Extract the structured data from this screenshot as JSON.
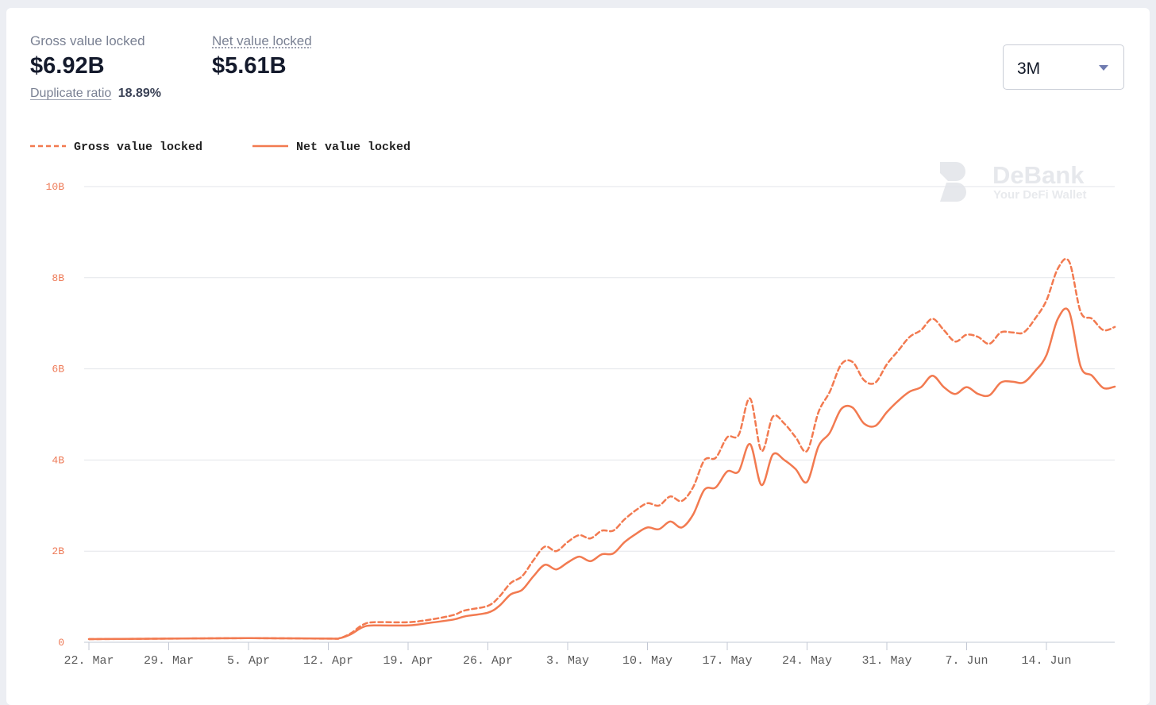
{
  "summary": {
    "gross_label": "Gross value locked",
    "gross_value": "$6.92B",
    "net_label": "Net value locked",
    "net_value": "$5.61B",
    "duplicate_label": "Duplicate ratio",
    "duplicate_value": "18.89%"
  },
  "range_selector": {
    "value": "3M"
  },
  "watermark": {
    "brand": "DeBank",
    "tagline": "Your DeFi Wallet"
  },
  "colors": {
    "series": "#f27a50",
    "axis_label": "#ee7a57",
    "grid": "#e3e5ea",
    "x_label": "#5c5c5c"
  },
  "chart_data": {
    "type": "line",
    "title": "",
    "xlabel": "",
    "ylabel": "",
    "ylim": [
      0,
      10
    ],
    "y_ticks": [
      0,
      2,
      4,
      6,
      8,
      10
    ],
    "y_tick_labels": [
      "0",
      "2B",
      "4B",
      "6B",
      "8B",
      "10B"
    ],
    "x_range": [
      "2021-03-22",
      "2021-06-20"
    ],
    "x_ticks": [
      "2021-03-22",
      "2021-03-29",
      "2021-04-05",
      "2021-04-12",
      "2021-04-19",
      "2021-04-26",
      "2021-05-03",
      "2021-05-10",
      "2021-05-17",
      "2021-05-24",
      "2021-05-31",
      "2021-06-07",
      "2021-06-14"
    ],
    "x_tick_labels": [
      "22. Mar",
      "29. Mar",
      "5. Apr",
      "12. Apr",
      "19. Apr",
      "26. Apr",
      "3. May",
      "10. May",
      "17. May",
      "24. May",
      "31. May",
      "7. Jun",
      "14. Jun"
    ],
    "legend": "top-left",
    "grid": true,
    "series": [
      {
        "name": "Gross value locked",
        "style": "dashed",
        "points": [
          [
            "2021-03-22",
            0.07
          ],
          [
            "2021-03-29",
            0.08
          ],
          [
            "2021-04-05",
            0.09
          ],
          [
            "2021-04-12",
            0.08
          ],
          [
            "2021-04-13",
            0.09
          ],
          [
            "2021-04-14",
            0.2
          ],
          [
            "2021-04-15",
            0.38
          ],
          [
            "2021-04-16",
            0.44
          ],
          [
            "2021-04-19",
            0.44
          ],
          [
            "2021-04-21",
            0.5
          ],
          [
            "2021-04-23",
            0.6
          ],
          [
            "2021-04-24",
            0.7
          ],
          [
            "2021-04-26",
            0.8
          ],
          [
            "2021-04-27",
            1.0
          ],
          [
            "2021-04-28",
            1.3
          ],
          [
            "2021-04-29",
            1.45
          ],
          [
            "2021-04-30",
            1.8
          ],
          [
            "2021-05-01",
            2.1
          ],
          [
            "2021-05-02",
            2.0
          ],
          [
            "2021-05-03",
            2.2
          ],
          [
            "2021-05-04",
            2.35
          ],
          [
            "2021-05-05",
            2.28
          ],
          [
            "2021-05-06",
            2.45
          ],
          [
            "2021-05-07",
            2.45
          ],
          [
            "2021-05-08",
            2.7
          ],
          [
            "2021-05-09",
            2.9
          ],
          [
            "2021-05-10",
            3.05
          ],
          [
            "2021-05-11",
            3.0
          ],
          [
            "2021-05-12",
            3.2
          ],
          [
            "2021-05-13",
            3.1
          ],
          [
            "2021-05-14",
            3.4
          ],
          [
            "2021-05-15",
            4.0
          ],
          [
            "2021-05-16",
            4.05
          ],
          [
            "2021-05-17",
            4.5
          ],
          [
            "2021-05-18",
            4.55
          ],
          [
            "2021-05-19",
            5.35
          ],
          [
            "2021-05-20",
            4.2
          ],
          [
            "2021-05-21",
            4.95
          ],
          [
            "2021-05-22",
            4.8
          ],
          [
            "2021-05-23",
            4.5
          ],
          [
            "2021-05-24",
            4.2
          ],
          [
            "2021-05-25",
            5.05
          ],
          [
            "2021-05-26",
            5.5
          ],
          [
            "2021-05-27",
            6.1
          ],
          [
            "2021-05-28",
            6.15
          ],
          [
            "2021-05-29",
            5.75
          ],
          [
            "2021-05-30",
            5.7
          ],
          [
            "2021-05-31",
            6.1
          ],
          [
            "2021-06-01",
            6.4
          ],
          [
            "2021-06-02",
            6.7
          ],
          [
            "2021-06-03",
            6.85
          ],
          [
            "2021-06-04",
            7.1
          ],
          [
            "2021-06-05",
            6.85
          ],
          [
            "2021-06-06",
            6.6
          ],
          [
            "2021-06-07",
            6.75
          ],
          [
            "2021-06-08",
            6.7
          ],
          [
            "2021-06-09",
            6.55
          ],
          [
            "2021-06-10",
            6.8
          ],
          [
            "2021-06-11",
            6.8
          ],
          [
            "2021-06-12",
            6.8
          ],
          [
            "2021-06-13",
            7.1
          ],
          [
            "2021-06-14",
            7.5
          ],
          [
            "2021-06-15",
            8.2
          ],
          [
            "2021-06-16",
            8.35
          ],
          [
            "2021-06-17",
            7.25
          ],
          [
            "2021-06-18",
            7.1
          ],
          [
            "2021-06-19",
            6.85
          ],
          [
            "2021-06-20",
            6.92
          ]
        ]
      },
      {
        "name": "Net value locked",
        "style": "solid",
        "points": [
          [
            "2021-03-22",
            0.07
          ],
          [
            "2021-03-29",
            0.08
          ],
          [
            "2021-04-05",
            0.09
          ],
          [
            "2021-04-12",
            0.08
          ],
          [
            "2021-04-13",
            0.09
          ],
          [
            "2021-04-14",
            0.18
          ],
          [
            "2021-04-15",
            0.33
          ],
          [
            "2021-04-16",
            0.37
          ],
          [
            "2021-04-19",
            0.37
          ],
          [
            "2021-04-21",
            0.43
          ],
          [
            "2021-04-23",
            0.5
          ],
          [
            "2021-04-24",
            0.57
          ],
          [
            "2021-04-26",
            0.65
          ],
          [
            "2021-04-27",
            0.8
          ],
          [
            "2021-04-28",
            1.05
          ],
          [
            "2021-04-29",
            1.15
          ],
          [
            "2021-04-30",
            1.45
          ],
          [
            "2021-05-01",
            1.7
          ],
          [
            "2021-05-02",
            1.6
          ],
          [
            "2021-05-03",
            1.75
          ],
          [
            "2021-05-04",
            1.88
          ],
          [
            "2021-05-05",
            1.78
          ],
          [
            "2021-05-06",
            1.93
          ],
          [
            "2021-05-07",
            1.95
          ],
          [
            "2021-05-08",
            2.2
          ],
          [
            "2021-05-09",
            2.38
          ],
          [
            "2021-05-10",
            2.52
          ],
          [
            "2021-05-11",
            2.48
          ],
          [
            "2021-05-12",
            2.65
          ],
          [
            "2021-05-13",
            2.52
          ],
          [
            "2021-05-14",
            2.8
          ],
          [
            "2021-05-15",
            3.35
          ],
          [
            "2021-05-16",
            3.4
          ],
          [
            "2021-05-17",
            3.75
          ],
          [
            "2021-05-18",
            3.75
          ],
          [
            "2021-05-19",
            4.35
          ],
          [
            "2021-05-20",
            3.45
          ],
          [
            "2021-05-21",
            4.12
          ],
          [
            "2021-05-22",
            4.0
          ],
          [
            "2021-05-23",
            3.8
          ],
          [
            "2021-05-24",
            3.52
          ],
          [
            "2021-05-25",
            4.3
          ],
          [
            "2021-05-26",
            4.6
          ],
          [
            "2021-05-27",
            5.12
          ],
          [
            "2021-05-28",
            5.15
          ],
          [
            "2021-05-29",
            4.8
          ],
          [
            "2021-05-30",
            4.75
          ],
          [
            "2021-05-31",
            5.05
          ],
          [
            "2021-06-01",
            5.3
          ],
          [
            "2021-06-02",
            5.5
          ],
          [
            "2021-06-03",
            5.6
          ],
          [
            "2021-06-04",
            5.85
          ],
          [
            "2021-06-05",
            5.6
          ],
          [
            "2021-06-06",
            5.45
          ],
          [
            "2021-06-07",
            5.6
          ],
          [
            "2021-06-08",
            5.45
          ],
          [
            "2021-06-09",
            5.42
          ],
          [
            "2021-06-10",
            5.7
          ],
          [
            "2021-06-11",
            5.72
          ],
          [
            "2021-06-12",
            5.7
          ],
          [
            "2021-06-13",
            5.95
          ],
          [
            "2021-06-14",
            6.3
          ],
          [
            "2021-06-15",
            7.1
          ],
          [
            "2021-06-16",
            7.25
          ],
          [
            "2021-06-17",
            6.05
          ],
          [
            "2021-06-18",
            5.85
          ],
          [
            "2021-06-19",
            5.58
          ],
          [
            "2021-06-20",
            5.61
          ]
        ]
      }
    ]
  }
}
